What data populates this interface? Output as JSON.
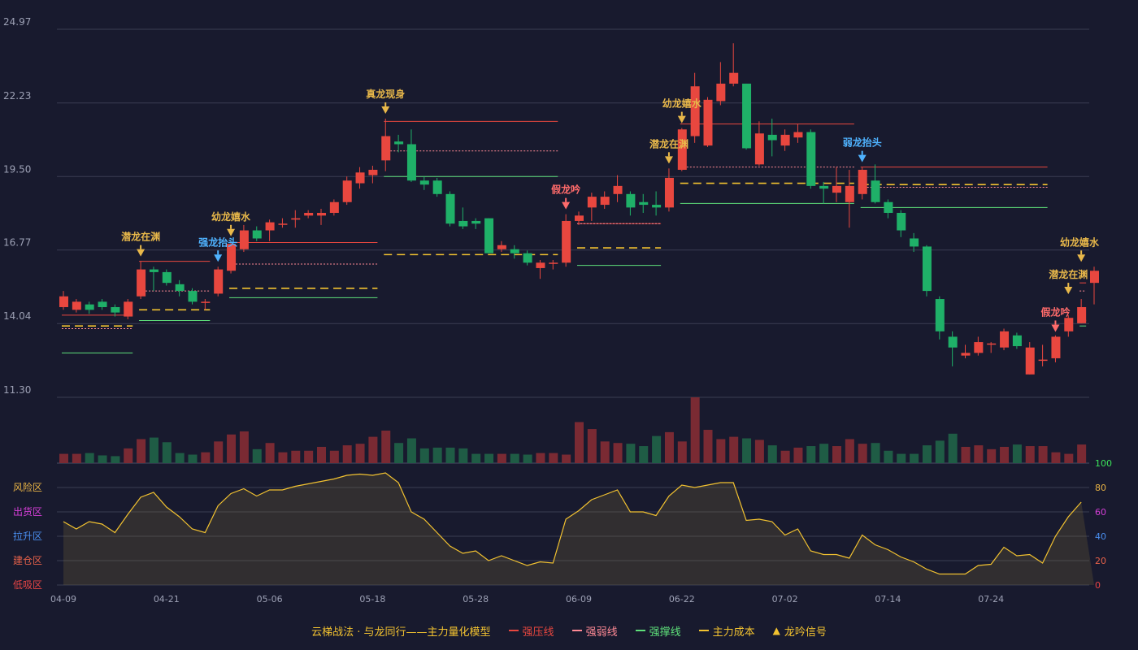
{
  "chart_data": {
    "type": "candlestick",
    "y_ticks": [
      "24.97",
      "22.23",
      "19.50",
      "16.77",
      "14.04",
      "11.30"
    ],
    "ylim": [
      11.3,
      24.97
    ],
    "x_ticks": [
      {
        "label": "04-09",
        "i": 0
      },
      {
        "label": "04-21",
        "i": 8
      },
      {
        "label": "05-06",
        "i": 16
      },
      {
        "label": "05-18",
        "i": 24
      },
      {
        "label": "05-28",
        "i": 32
      },
      {
        "label": "06-09",
        "i": 40
      },
      {
        "label": "06-22",
        "i": 48
      },
      {
        "label": "07-02",
        "i": 56
      },
      {
        "label": "07-14",
        "i": 64
      },
      {
        "label": "07-24",
        "i": 72
      }
    ],
    "candles": [
      [
        14.65,
        15.05,
        15.25,
        14.55
      ],
      [
        14.55,
        14.85,
        14.95,
        14.45
      ],
      [
        14.75,
        14.55,
        14.85,
        14.4
      ],
      [
        14.85,
        14.65,
        14.95,
        14.55
      ],
      [
        14.65,
        14.45,
        14.75,
        14.3
      ],
      [
        14.3,
        14.85,
        14.95,
        14.2
      ],
      [
        15.05,
        16.05,
        16.35,
        14.95
      ],
      [
        16.05,
        15.95,
        16.15,
        15.25
      ],
      [
        15.95,
        15.55,
        16.05,
        15.45
      ],
      [
        15.5,
        15.25,
        15.65,
        15.05
      ],
      [
        15.25,
        14.85,
        15.35,
        14.75
      ],
      [
        14.85,
        14.85,
        14.95,
        14.55
      ],
      [
        15.15,
        16.05,
        16.15,
        15.05
      ],
      [
        16.0,
        17.0,
        17.1,
        15.9
      ],
      [
        16.8,
        17.5,
        17.7,
        16.7
      ],
      [
        17.5,
        17.2,
        17.65,
        17.1
      ],
      [
        17.5,
        17.8,
        17.9,
        17.1
      ],
      [
        17.75,
        17.75,
        17.95,
        17.6
      ],
      [
        17.9,
        17.95,
        18.25,
        17.6
      ],
      [
        18.05,
        18.15,
        18.25,
        17.95
      ],
      [
        18.05,
        18.15,
        18.3,
        17.7
      ],
      [
        18.15,
        18.55,
        18.65,
        18.05
      ],
      [
        18.55,
        19.35,
        19.5,
        18.45
      ],
      [
        19.25,
        19.65,
        19.85,
        19.05
      ],
      [
        19.55,
        19.75,
        19.9,
        19.25
      ],
      [
        20.1,
        21.0,
        21.65,
        19.7
      ],
      [
        20.8,
        20.7,
        21.05,
        20.4
      ],
      [
        20.7,
        19.35,
        21.25,
        19.3
      ],
      [
        19.35,
        19.2,
        19.5,
        19.0
      ],
      [
        19.35,
        18.85,
        19.45,
        18.75
      ],
      [
        18.85,
        17.75,
        18.95,
        17.65
      ],
      [
        17.85,
        17.65,
        18.35,
        17.55
      ],
      [
        17.85,
        17.75,
        17.95,
        17.55
      ],
      [
        17.95,
        16.65,
        17.95,
        16.65
      ],
      [
        16.8,
        16.95,
        17.1,
        16.7
      ],
      [
        16.8,
        16.65,
        16.95,
        16.45
      ],
      [
        16.65,
        16.3,
        16.75,
        16.2
      ],
      [
        16.1,
        16.3,
        16.4,
        15.7
      ],
      [
        16.3,
        16.3,
        16.4,
        16.05
      ],
      [
        16.3,
        17.85,
        18.1,
        16.15
      ],
      [
        17.85,
        18.05,
        18.2,
        17.7
      ],
      [
        18.35,
        18.75,
        18.9,
        17.85
      ],
      [
        18.45,
        18.75,
        18.95,
        18.3
      ],
      [
        18.85,
        19.15,
        19.55,
        18.55
      ],
      [
        18.85,
        18.35,
        18.95,
        18.05
      ],
      [
        18.55,
        18.45,
        18.85,
        18.15
      ],
      [
        18.45,
        18.35,
        18.95,
        18.05
      ],
      [
        18.35,
        19.45,
        19.8,
        18.2
      ],
      [
        19.75,
        21.25,
        21.3,
        19.7
      ],
      [
        21.0,
        22.85,
        23.35,
        20.75
      ],
      [
        20.65,
        22.35,
        22.45,
        20.6
      ],
      [
        22.3,
        22.95,
        23.75,
        22.15
      ],
      [
        22.95,
        23.35,
        24.45,
        22.85
      ],
      [
        22.95,
        20.55,
        22.95,
        20.5
      ],
      [
        19.95,
        21.1,
        21.55,
        19.9
      ],
      [
        21.05,
        20.85,
        21.65,
        20.25
      ],
      [
        20.65,
        21.05,
        21.25,
        20.45
      ],
      [
        20.95,
        21.15,
        21.45,
        20.75
      ],
      [
        21.15,
        19.15,
        21.25,
        19.05
      ],
      [
        19.15,
        19.05,
        19.3,
        18.5
      ],
      [
        18.9,
        19.15,
        19.85,
        18.55
      ],
      [
        18.55,
        19.15,
        19.75,
        17.6
      ],
      [
        18.85,
        19.75,
        19.85,
        18.65
      ],
      [
        19.35,
        18.55,
        19.95,
        18.5
      ],
      [
        18.55,
        18.15,
        18.65,
        17.95
      ],
      [
        18.15,
        17.5,
        18.25,
        17.25
      ],
      [
        17.2,
        16.9,
        17.4,
        16.7
      ],
      [
        16.9,
        15.25,
        16.95,
        15.05
      ],
      [
        14.95,
        13.75,
        15.05,
        13.45
      ],
      [
        13.55,
        13.15,
        13.75,
        12.45
      ],
      [
        12.85,
        12.95,
        13.25,
        12.75
      ],
      [
        12.95,
        13.35,
        13.55,
        12.85
      ],
      [
        13.3,
        13.3,
        13.35,
        12.95
      ],
      [
        13.15,
        13.75,
        13.85,
        13.05
      ],
      [
        13.6,
        13.2,
        13.7,
        13.1
      ],
      [
        12.15,
        13.15,
        13.35,
        12.15
      ],
      [
        12.7,
        12.7,
        13.25,
        12.45
      ],
      [
        12.75,
        13.55,
        13.6,
        12.6
      ],
      [
        13.75,
        14.25,
        14.35,
        13.55
      ],
      [
        14.05,
        14.65,
        14.95,
        14.05
      ],
      [
        15.55,
        16.0,
        16.15,
        14.75
      ]
    ],
    "volume": [
      12,
      12,
      13,
      10,
      9,
      19,
      31,
      33,
      27,
      13,
      11,
      14,
      28,
      37,
      41,
      18,
      26,
      14,
      16,
      16,
      21,
      16,
      23,
      25,
      34,
      42,
      26,
      32,
      19,
      20,
      20,
      19,
      12,
      12,
      12,
      12,
      11,
      13,
      13,
      11,
      53,
      44,
      28,
      26,
      25,
      22,
      35,
      40,
      28,
      85,
      43,
      31,
      34,
      32,
      30,
      23,
      16,
      20,
      22,
      25,
      22,
      31,
      25,
      26,
      16,
      12,
      12,
      23,
      29,
      38,
      21,
      23,
      18,
      21,
      24,
      22,
      22,
      14,
      12,
      24
    ],
    "oscillator": [
      52,
      46,
      52,
      50,
      43,
      58,
      72,
      76,
      64,
      56,
      46,
      43,
      65,
      75,
      79,
      73,
      78,
      78,
      81,
      83,
      85,
      87,
      90,
      91,
      90,
      92,
      84,
      60,
      54,
      43,
      32,
      26,
      28,
      20,
      24,
      20,
      16,
      19,
      18,
      54,
      61,
      70,
      74,
      78,
      60,
      60,
      57,
      73,
      82,
      80,
      82,
      84,
      84,
      53,
      54,
      52,
      41,
      46,
      28,
      25,
      25,
      22,
      41,
      33,
      29,
      23,
      19,
      13,
      9,
      9,
      9,
      16,
      17,
      31,
      24,
      25,
      18,
      40,
      56,
      68
    ],
    "osc_ylim": [
      0,
      100
    ],
    "osc_ticks": [
      "100",
      "80",
      "60",
      "40",
      "20",
      "0"
    ],
    "zones": [
      {
        "label": "风险区",
        "color": "#e8b345"
      },
      {
        "label": "出货区",
        "color": "#d63fd8"
      },
      {
        "label": "拉升区",
        "color": "#4a8ff0"
      },
      {
        "label": "建仓区",
        "color": "#e8624a"
      },
      {
        "label": "低吸区",
        "color": "#e84545"
      }
    ],
    "levels": [
      {
        "x0": 0,
        "x1": 5,
        "resist": 14.35,
        "weak": 13.85,
        "cost": 13.95,
        "support": 12.95
      },
      {
        "x0": 6,
        "x1": 11,
        "resist": 16.35,
        "weak": 15.25,
        "cost": 14.55,
        "support": 14.15
      },
      {
        "x0": 13,
        "x1": 24,
        "resist": 17.05,
        "weak": 16.25,
        "cost": 15.35,
        "support": 15.0
      },
      {
        "x0": 25,
        "x1": 38,
        "resist": 21.55,
        "weak": 20.45,
        "cost": 16.6,
        "support": 19.5
      },
      {
        "x0": 40,
        "x1": 46,
        "resist": 17.75,
        "weak": 17.75,
        "cost": 16.85,
        "support": 16.2
      },
      {
        "x0": 48,
        "x1": 61,
        "resist": 21.45,
        "weak": 19.85,
        "cost": 19.25,
        "support": 18.5
      },
      {
        "x0": 62,
        "x1": 76,
        "resist": 19.85,
        "weak": 19.1,
        "cost": 19.2,
        "support": 18.35
      },
      {
        "x0": 79,
        "x1": 79,
        "resist": 15.55,
        "weak": 15.25,
        "cost": 14.15,
        "support": 13.95
      }
    ],
    "signals": [
      {
        "i": 6,
        "label": "潜龙在渊",
        "color": "#e8b84a",
        "price": 16.35
      },
      {
        "i": 12,
        "label": "强龙抬头",
        "color": "#4fb3ff",
        "price": 16.15
      },
      {
        "i": 13,
        "label": "幼龙嬉水",
        "color": "#e8b84a",
        "price": 17.1
      },
      {
        "i": 25,
        "label": "真龙现身",
        "color": "#e8b84a",
        "price": 21.65
      },
      {
        "i": 39,
        "label": "假龙吟",
        "color": "#ff6b6b",
        "price": 18.1
      },
      {
        "i": 47,
        "label": "潜龙在渊",
        "color": "#e8b84a",
        "price": 19.8
      },
      {
        "i": 48,
        "label": "幼龙嬉水",
        "color": "#e8b84a",
        "price": 21.3
      },
      {
        "i": 62,
        "label": "弱龙抬头",
        "color": "#4fb3ff",
        "price": 19.85
      },
      {
        "i": 77,
        "label": "假龙吟",
        "color": "#ff6b6b",
        "price": 13.55
      },
      {
        "i": 78,
        "label": "潜龙在渊",
        "color": "#e8b84a",
        "price": 14.95
      },
      {
        "i": 79,
        "label": "幼龙嬉水",
        "color": "#e8b84a",
        "price": 16.15
      }
    ]
  },
  "legend": {
    "title": "云梯战法 · 与龙同行——主力量化模型",
    "resist": "强压线",
    "weak": "强弱线",
    "support": "强撑线",
    "cost": "主力成本",
    "signal": "龙吟信号"
  },
  "colors": {
    "up": "#e8473f",
    "down": "#1fb068",
    "up_vol": "#7a2a33",
    "down_vol": "#1f5c45",
    "resist": "#e8473f",
    "weak": "#ff8a95",
    "support": "#5ee07a",
    "cost": "#f2c230",
    "osc": "#f2c230",
    "grid": "#3a3d52",
    "axis_text": "#9da1b5",
    "title": "#f2c230"
  }
}
